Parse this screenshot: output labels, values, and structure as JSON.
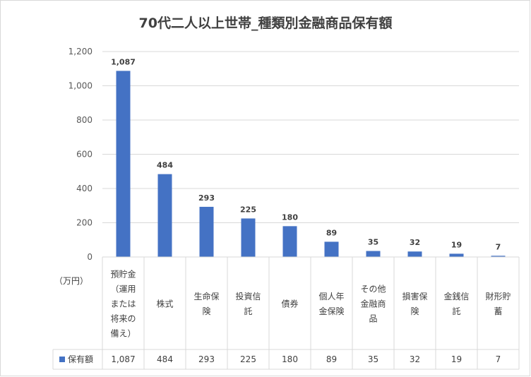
{
  "chart_data": {
    "type": "bar",
    "title": "70代二人以上世帯_種類別金融商品保有額",
    "unit_label": "（万円）",
    "categories": [
      [
        "預貯金",
        "（運用",
        "または",
        "将来の",
        "備え）"
      ],
      [
        "株式"
      ],
      [
        "生命保",
        "険"
      ],
      [
        "投資信",
        "託"
      ],
      [
        "債券"
      ],
      [
        "個人年",
        "金保険"
      ],
      [
        "その他",
        "金融商",
        "品"
      ],
      [
        "損害保",
        "険"
      ],
      [
        "金銭信",
        "託"
      ],
      [
        "財形貯",
        "蓄"
      ]
    ],
    "series": [
      {
        "name": "保有額",
        "color": "#4472c4",
        "values": [
          1087,
          484,
          293,
          225,
          180,
          89,
          35,
          32,
          19,
          7
        ],
        "labels": [
          "1,087",
          "484",
          "293",
          "225",
          "180",
          "89",
          "35",
          "32",
          "19",
          "7"
        ]
      }
    ],
    "yticks": [
      "0",
      "200",
      "400",
      "600",
      "800",
      "1,000",
      "1,200"
    ],
    "ylim": [
      0,
      1200
    ],
    "grid": true,
    "data_table": true
  }
}
